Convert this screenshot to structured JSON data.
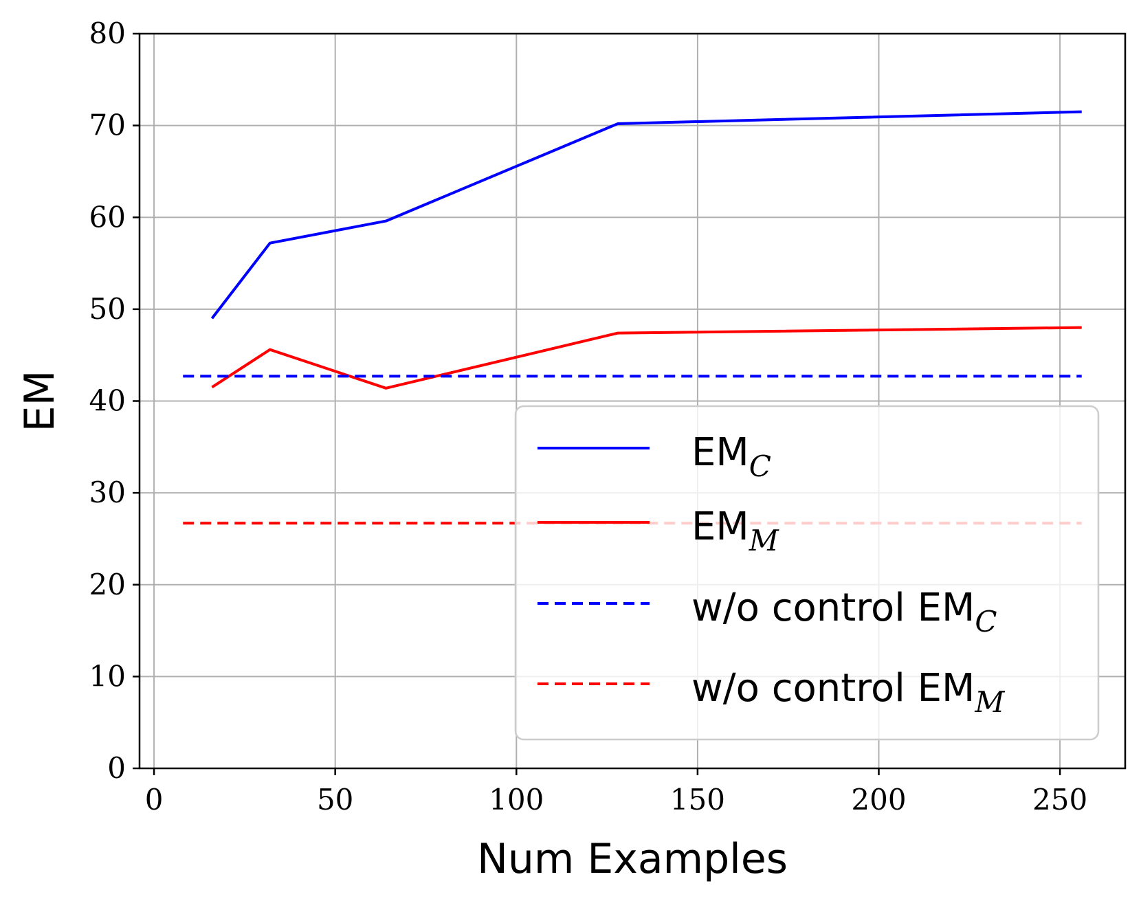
{
  "chart_data": {
    "type": "line",
    "xlabel": "Num Examples",
    "ylabel": "EM",
    "xlim": [
      -4,
      268
    ],
    "ylim": [
      0,
      80
    ],
    "xticks": [
      0,
      50,
      100,
      150,
      200,
      250
    ],
    "yticks": [
      0,
      10,
      20,
      30,
      40,
      50,
      60,
      70,
      80
    ],
    "xtick_labels": [
      "0",
      "50",
      "100",
      "150",
      "200",
      "250"
    ],
    "ytick_labels": [
      "0",
      "10",
      "20",
      "30",
      "40",
      "50",
      "60",
      "70",
      "80"
    ],
    "grid": true,
    "legend_position": "lower-right",
    "series": [
      {
        "name": "EM",
        "name_sub": "C",
        "color": "#0000ff",
        "style": "solid",
        "x": [
          16,
          32,
          64,
          128,
          256
        ],
        "y": [
          49.0,
          57.2,
          59.6,
          70.2,
          71.5
        ]
      },
      {
        "name": "EM",
        "name_sub": "M",
        "color": "#ff0000",
        "style": "solid",
        "x": [
          16,
          32,
          64,
          128,
          256
        ],
        "y": [
          41.5,
          45.6,
          41.4,
          47.4,
          48.0
        ]
      },
      {
        "name": "w/o control EM",
        "name_sub": "C",
        "color": "#0000ff",
        "style": "dashed",
        "x": [
          8,
          256
        ],
        "y": [
          42.7,
          42.7
        ]
      },
      {
        "name": "w/o control EM",
        "name_sub": "M",
        "color": "#ff0000",
        "style": "dashed",
        "x": [
          8,
          256
        ],
        "y": [
          26.7,
          26.7
        ]
      }
    ]
  }
}
